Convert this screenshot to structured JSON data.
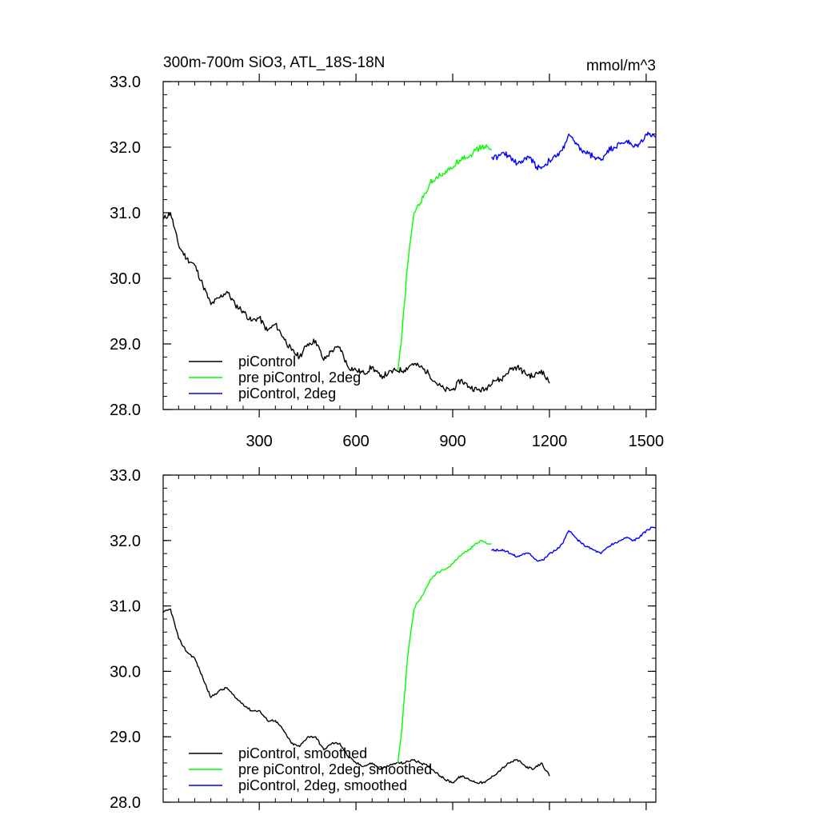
{
  "header": {
    "title": "300m-700m SiO3, ATL_18S-18N",
    "units": "mmol/m^3"
  },
  "chart_data": [
    {
      "type": "line",
      "title": "300m-700m SiO3, ATL_18S-18N",
      "units": "mmol/m^3",
      "xlim": [
        2,
        1530
      ],
      "ylim": [
        28.0,
        33.0
      ],
      "x_ticks": [
        300,
        600,
        900,
        1200,
        1500
      ],
      "x_tick_labels": [
        "300",
        "600",
        "900",
        "1200",
        "1500"
      ],
      "y_ticks": [
        28.0,
        29.0,
        30.0,
        31.0,
        32.0,
        33.0
      ],
      "y_tick_labels": [
        "28.0",
        "29.0",
        "30.0",
        "31.0",
        "32.0",
        "33.0"
      ],
      "grid": false,
      "legend_position": "bottom-left",
      "series": [
        {
          "name": "piControl",
          "color": "#000000",
          "x": [
            2,
            25,
            50,
            75,
            100,
            125,
            150,
            175,
            200,
            225,
            250,
            275,
            300,
            325,
            350,
            375,
            400,
            425,
            450,
            475,
            500,
            525,
            550,
            575,
            600,
            625,
            650,
            675,
            700,
            725,
            750,
            775,
            800,
            825,
            850,
            875,
            900,
            925,
            950,
            975,
            1000,
            1025,
            1050,
            1075,
            1100,
            1125,
            1150,
            1175,
            1200
          ],
          "y": [
            30.9,
            31.0,
            30.5,
            30.3,
            30.2,
            29.9,
            29.6,
            29.7,
            29.8,
            29.6,
            29.5,
            29.35,
            29.4,
            29.2,
            29.3,
            29.1,
            28.9,
            28.8,
            29.0,
            29.05,
            28.75,
            28.9,
            28.95,
            28.65,
            28.6,
            28.55,
            28.65,
            28.5,
            28.55,
            28.6,
            28.6,
            28.7,
            28.65,
            28.55,
            28.4,
            28.3,
            28.3,
            28.45,
            28.35,
            28.3,
            28.3,
            28.45,
            28.45,
            28.6,
            28.65,
            28.55,
            28.5,
            28.6,
            28.4
          ]
        },
        {
          "name": "pre piControl, 2deg",
          "color": "#00ff00",
          "x": [
            730,
            740,
            750,
            760,
            770,
            780,
            790,
            800,
            815,
            830,
            850,
            870,
            890,
            910,
            930,
            950,
            970,
            990,
            1010,
            1020
          ],
          "y": [
            28.6,
            29.0,
            29.6,
            30.2,
            30.6,
            31.0,
            31.1,
            31.15,
            31.3,
            31.45,
            31.55,
            31.6,
            31.65,
            31.75,
            31.85,
            31.85,
            31.95,
            32.0,
            32.0,
            31.95
          ]
        },
        {
          "name": "piControl, 2deg",
          "color": "#0000ff",
          "x": [
            1020,
            1040,
            1060,
            1080,
            1100,
            1120,
            1140,
            1160,
            1180,
            1200,
            1220,
            1240,
            1260,
            1280,
            1300,
            1320,
            1340,
            1360,
            1380,
            1400,
            1420,
            1440,
            1460,
            1480,
            1500,
            1520,
            1530
          ],
          "y": [
            31.85,
            31.85,
            31.9,
            31.85,
            31.75,
            31.8,
            31.85,
            31.7,
            31.7,
            31.8,
            31.85,
            31.95,
            32.2,
            32.05,
            31.95,
            31.9,
            31.85,
            31.8,
            31.95,
            32.0,
            32.05,
            32.1,
            32.0,
            32.05,
            32.2,
            32.2,
            32.15
          ]
        }
      ]
    },
    {
      "type": "line",
      "xlim": [
        2,
        1530
      ],
      "ylim": [
        28.0,
        33.0
      ],
      "x_ticks": [
        300,
        600,
        900,
        1200,
        1500
      ],
      "x_tick_labels": [],
      "y_ticks": [
        28.0,
        29.0,
        30.0,
        31.0,
        32.0,
        33.0
      ],
      "y_tick_labels": [
        "28.0",
        "29.0",
        "30.0",
        "31.0",
        "32.0",
        "33.0"
      ],
      "grid": false,
      "legend_position": "bottom-left",
      "series": [
        {
          "name": "piControl, smoothed",
          "color": "#000000",
          "x": [
            2,
            25,
            50,
            75,
            100,
            125,
            150,
            175,
            200,
            225,
            250,
            275,
            300,
            325,
            350,
            375,
            400,
            425,
            450,
            475,
            500,
            525,
            550,
            575,
            600,
            625,
            650,
            675,
            700,
            725,
            750,
            775,
            800,
            825,
            850,
            875,
            900,
            925,
            950,
            975,
            1000,
            1025,
            1050,
            1075,
            1100,
            1125,
            1150,
            1175,
            1200
          ],
          "y": [
            30.9,
            30.95,
            30.5,
            30.3,
            30.2,
            29.9,
            29.6,
            29.7,
            29.75,
            29.6,
            29.5,
            29.4,
            29.4,
            29.25,
            29.25,
            29.1,
            28.9,
            28.85,
            29.0,
            29.0,
            28.8,
            28.9,
            28.9,
            28.7,
            28.6,
            28.55,
            28.6,
            28.5,
            28.55,
            28.6,
            28.6,
            28.65,
            28.6,
            28.55,
            28.45,
            28.35,
            28.3,
            28.4,
            28.35,
            28.3,
            28.3,
            28.4,
            28.5,
            28.6,
            28.65,
            28.55,
            28.5,
            28.6,
            28.4
          ]
        },
        {
          "name": "pre piControl, 2deg, smoothed",
          "color": "#00ff00",
          "x": [
            730,
            740,
            750,
            760,
            770,
            780,
            790,
            800,
            815,
            830,
            850,
            870,
            890,
            910,
            930,
            950,
            970,
            990,
            1010,
            1020
          ],
          "y": [
            28.6,
            29.0,
            29.6,
            30.2,
            30.6,
            30.95,
            31.05,
            31.1,
            31.25,
            31.4,
            31.5,
            31.55,
            31.6,
            31.7,
            31.8,
            31.85,
            31.95,
            32.0,
            31.95,
            31.95
          ]
        },
        {
          "name": "piControl, 2deg, smoothed",
          "color": "#0000ff",
          "x": [
            1020,
            1040,
            1060,
            1080,
            1100,
            1120,
            1140,
            1160,
            1180,
            1200,
            1220,
            1240,
            1260,
            1280,
            1300,
            1320,
            1340,
            1360,
            1380,
            1400,
            1420,
            1440,
            1460,
            1480,
            1500,
            1520,
            1530
          ],
          "y": [
            31.85,
            31.85,
            31.85,
            31.8,
            31.75,
            31.8,
            31.8,
            31.7,
            31.7,
            31.8,
            31.85,
            31.95,
            32.15,
            32.05,
            31.95,
            31.9,
            31.85,
            31.8,
            31.9,
            31.95,
            32.0,
            32.05,
            32.0,
            32.05,
            32.15,
            32.2,
            32.2
          ]
        }
      ]
    }
  ]
}
